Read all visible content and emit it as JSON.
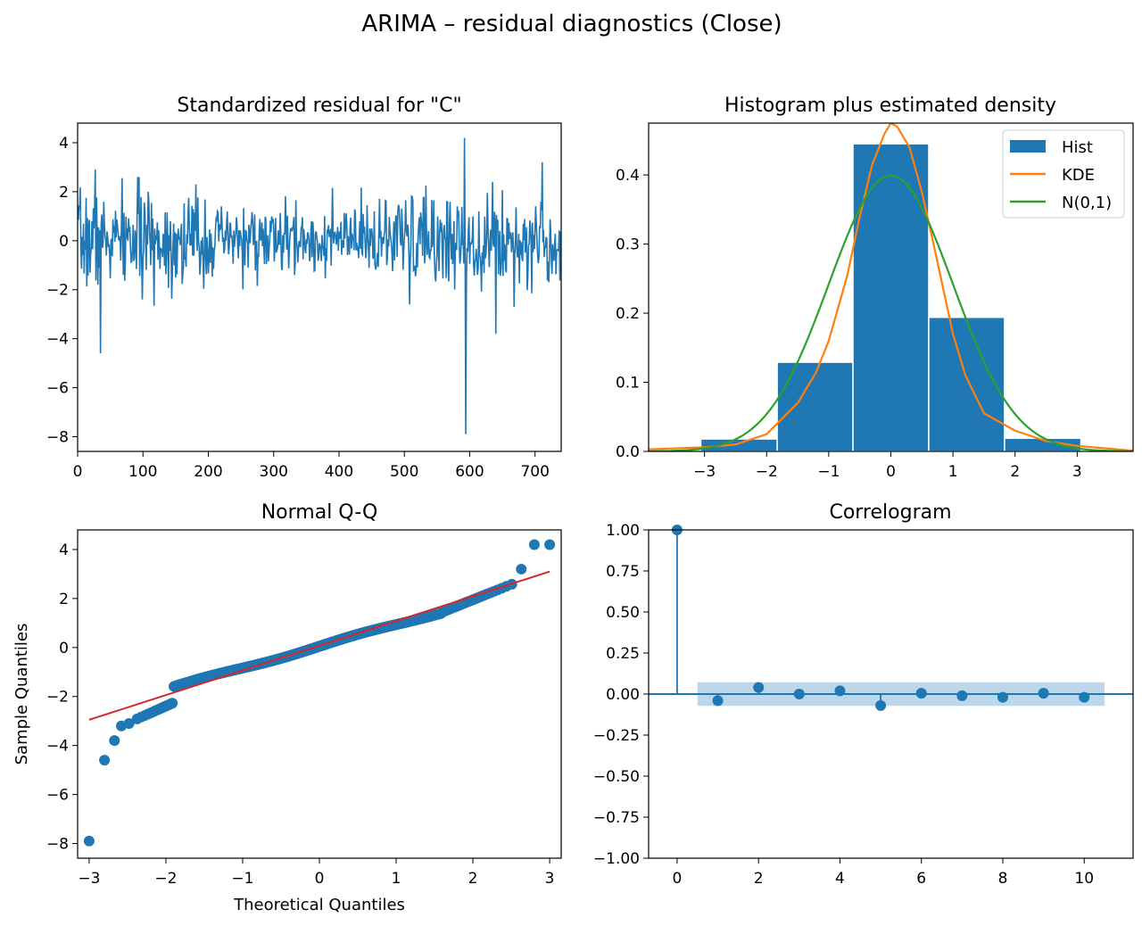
{
  "figure": {
    "title": "ARIMA – residual diagnostics (Close)"
  },
  "colors": {
    "blue": "#1f77b4",
    "orange": "#ff7f0e",
    "green": "#2ca02c",
    "red": "#d62728",
    "band": "#a6c8e4"
  },
  "chart_data": [
    {
      "type": "line",
      "title": "Standardized residual for \"C\"",
      "xlabel": "",
      "ylabel": "",
      "xlim": [
        0,
        740
      ],
      "ylim": [
        -8.6,
        4.8
      ],
      "xticks": [
        0,
        100,
        200,
        300,
        400,
        500,
        600,
        700
      ],
      "yticks": [
        -8,
        -6,
        -4,
        -2,
        0,
        2,
        4
      ],
      "n_points": 740,
      "notable_points": [
        {
          "x": 27,
          "y": 2.9
        },
        {
          "x": 35,
          "y": -4.6
        },
        {
          "x": 92,
          "y": 2.6
        },
        {
          "x": 181,
          "y": 2.3
        },
        {
          "x": 508,
          "y": -2.6
        },
        {
          "x": 592,
          "y": 4.2
        },
        {
          "x": 594,
          "y": -7.9
        },
        {
          "x": 640,
          "y": -3.8
        },
        {
          "x": 711,
          "y": 3.2
        }
      ],
      "grid": false
    },
    {
      "type": "bar",
      "title": "Histogram plus estimated density",
      "xlim": [
        -3.9,
        3.9
      ],
      "ylim": [
        0,
        0.475
      ],
      "xticks": [
        -3,
        -2,
        -1,
        0,
        1,
        2,
        3
      ],
      "yticks": [
        0.0,
        0.1,
        0.2,
        0.3,
        0.4
      ],
      "bins": [
        {
          "x0": -3.06,
          "x1": -1.83,
          "value": 0.018
        },
        {
          "x0": -1.83,
          "x1": -0.61,
          "value": 0.129
        },
        {
          "x0": -0.61,
          "x1": 0.61,
          "value": 0.445
        },
        {
          "x0": 0.61,
          "x1": 1.83,
          "value": 0.194
        },
        {
          "x0": 1.83,
          "x1": 3.06,
          "value": 0.019
        }
      ],
      "series": [
        {
          "name": "KDE",
          "color": "orange",
          "x": [
            -3.9,
            -3.0,
            -2.5,
            -2.0,
            -1.5,
            -1.2,
            -1.0,
            -0.7,
            -0.5,
            -0.3,
            -0.1,
            0.0,
            0.1,
            0.3,
            0.5,
            0.7,
            1.0,
            1.2,
            1.5,
            2.0,
            2.5,
            3.0,
            3.9
          ],
          "y": [
            0.003,
            0.006,
            0.01,
            0.025,
            0.07,
            0.115,
            0.16,
            0.255,
            0.34,
            0.415,
            0.46,
            0.475,
            0.47,
            0.44,
            0.375,
            0.295,
            0.17,
            0.11,
            0.055,
            0.03,
            0.015,
            0.008,
            0.001
          ]
        },
        {
          "name": "N(0,1)",
          "color": "green",
          "function": "normal_pdf",
          "mu": 0,
          "sigma": 1
        }
      ],
      "legend": {
        "position": "top-right",
        "entries": [
          "Hist",
          "KDE",
          "N(0,1)"
        ]
      },
      "grid": false
    },
    {
      "type": "scatter",
      "title": "Normal Q-Q",
      "xlabel": "Theoretical Quantiles",
      "ylabel": "Sample Quantiles",
      "xlim": [
        -3.15,
        3.15
      ],
      "ylim": [
        -8.6,
        4.8
      ],
      "xticks": [
        -3,
        -2,
        -1,
        0,
        1,
        2,
        3
      ],
      "yticks": [
        -8,
        -6,
        -4,
        -2,
        0,
        2,
        4
      ],
      "reference_line": {
        "x": [
          -3.0,
          3.0
        ],
        "y": [
          -2.95,
          3.1
        ],
        "color": "red"
      },
      "outliers": [
        {
          "x": -3.0,
          "y": -7.9
        },
        {
          "x": -2.8,
          "y": -4.6
        },
        {
          "x": -2.67,
          "y": -3.8
        },
        {
          "x": -2.58,
          "y": -3.2
        },
        {
          "x": -2.48,
          "y": -3.1
        },
        {
          "x": 2.63,
          "y": 3.2
        },
        {
          "x": 2.8,
          "y": 4.2
        },
        {
          "x": 3.0,
          "y": 4.2
        }
      ],
      "grid": false
    },
    {
      "type": "line",
      "title": "Correlogram",
      "xlim": [
        -0.7,
        11.2
      ],
      "ylim": [
        -1.0,
        1.0
      ],
      "xticks": [
        0,
        2,
        4,
        6,
        8,
        10
      ],
      "yticks": [
        -1.0,
        -0.75,
        -0.5,
        -0.25,
        0.0,
        0.25,
        0.5,
        0.75,
        1.0
      ],
      "x": [
        0,
        1,
        2,
        3,
        4,
        5,
        6,
        7,
        8,
        9,
        10
      ],
      "values": [
        1.0,
        -0.04,
        0.04,
        0.0,
        0.02,
        -0.07,
        0.005,
        -0.01,
        -0.02,
        0.005,
        -0.02
      ],
      "confidence_band": {
        "x": [
          0.5,
          10.5
        ],
        "y": [
          -0.072,
          0.072
        ]
      },
      "grid": false
    }
  ]
}
